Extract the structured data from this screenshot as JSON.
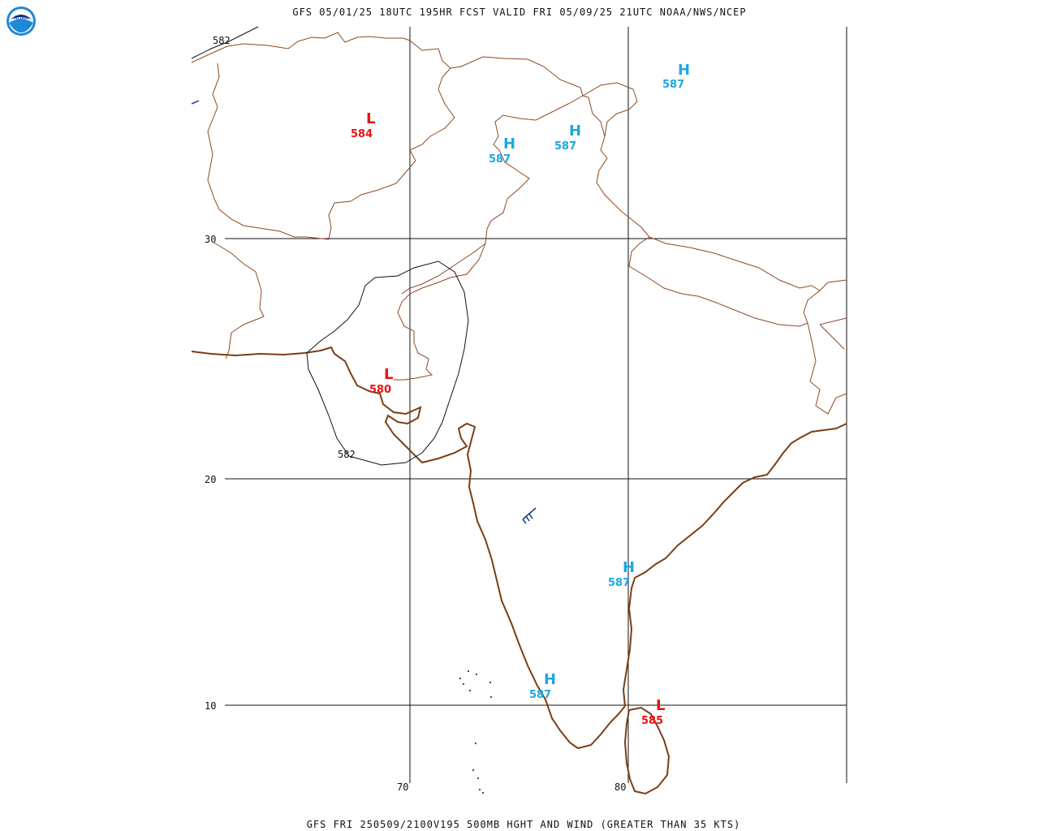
{
  "header": {
    "title": "GFS 05/01/25 18UTC 195HR FCST VALID FRI 05/09/25 21UTC NOAA/NWS/NCEP"
  },
  "footer": {
    "caption": "GFS FRI 250509/2100V195 500MB HGHT AND WIND (GREATER THAN 35 KTS)"
  },
  "logo": {
    "text": "NOAA"
  },
  "grid": {
    "latitudes": [
      {
        "label": "30"
      },
      {
        "label": "20"
      },
      {
        "label": "10"
      }
    ],
    "longitudes": [
      {
        "label": "70"
      },
      {
        "label": "80"
      }
    ]
  },
  "contour_labels": [
    {
      "label": "582"
    },
    {
      "label": "582"
    }
  ],
  "centers": [
    {
      "type": "L",
      "value": "584"
    },
    {
      "type": "L",
      "value": "580"
    },
    {
      "type": "L",
      "value": "585"
    },
    {
      "type": "H",
      "value": "587"
    },
    {
      "type": "H",
      "value": "587"
    },
    {
      "type": "H",
      "value": "587"
    },
    {
      "type": "H",
      "value": "587"
    },
    {
      "type": "H",
      "value": "587"
    }
  ],
  "colors": {
    "high": "#1ea7e0",
    "low": "#ee1111",
    "border": "#8b4a22",
    "grid": "#111111",
    "wind_barb": "#123a7a"
  }
}
